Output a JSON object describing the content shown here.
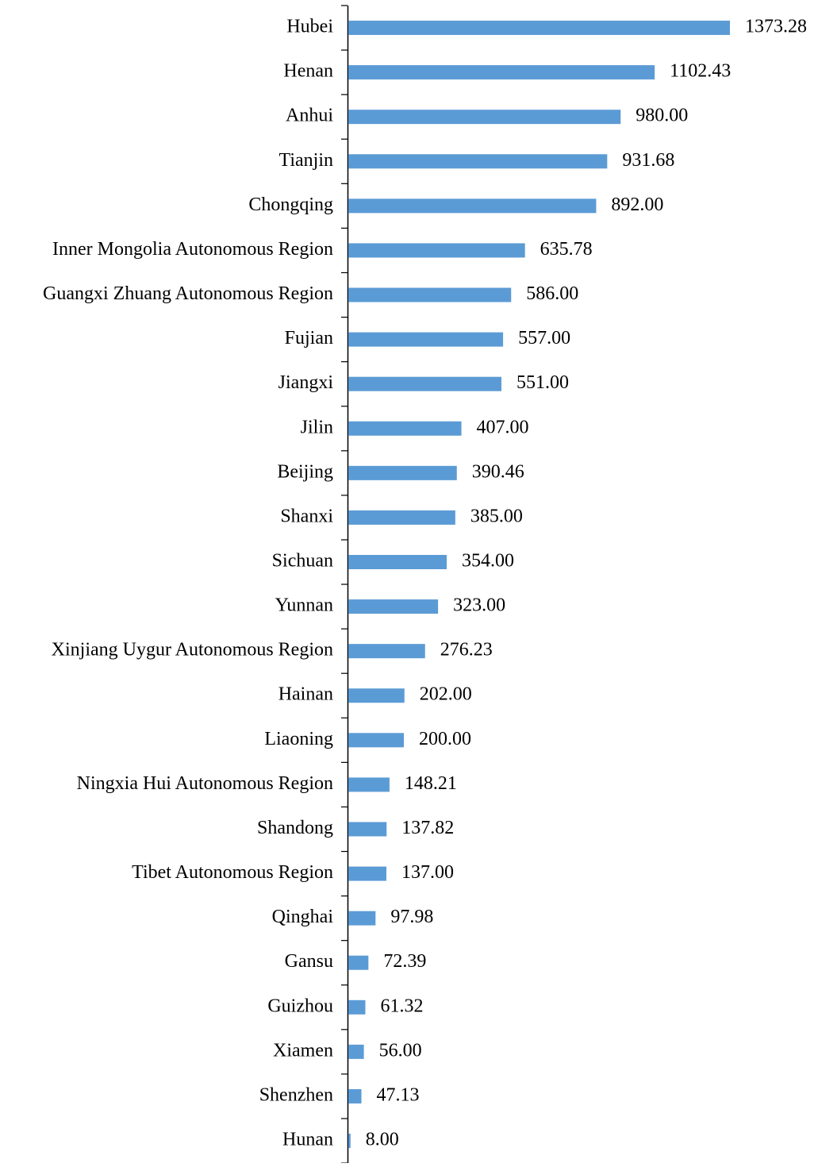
{
  "chart_data": {
    "type": "bar",
    "orientation": "horizontal",
    "color": "#5b9bd5",
    "categories": [
      "Hubei",
      "Henan",
      "Anhui",
      "Tianjin",
      "Chongqing",
      "Inner Mongolia Autonomous Region",
      "Guangxi Zhuang Autonomous Region",
      "Fujian",
      "Jiangxi",
      "Jilin",
      "Beijing",
      "Shanxi",
      "Sichuan",
      "Yunnan",
      "Xinjiang Uygur Autonomous Region",
      "Hainan",
      "Liaoning",
      "Ningxia Hui Autonomous Region",
      "Shandong",
      "Tibet Autonomous Region",
      "Qinghai",
      "Gansu",
      "Guizhou",
      "Xiamen",
      "Shenzhen",
      "Hunan"
    ],
    "values": [
      1373.28,
      1102.43,
      980,
      931.68,
      892,
      635.78,
      586,
      557,
      551,
      407,
      390.46,
      385,
      354,
      323,
      276.23,
      202,
      200,
      148.21,
      137.82,
      137,
      97.98,
      72.39,
      61.32,
      56,
      47.13,
      8
    ],
    "value_labels": [
      "1373.28",
      "1102.43",
      "980.00",
      "931.68",
      "892.00",
      "635.78",
      "586.00",
      "557.00",
      "551.00",
      "407.00",
      "390.46",
      "385.00",
      "354.00",
      "323.00",
      "276.23",
      "202.00",
      "200.00",
      "148.21",
      "137.82",
      "137.00",
      "97.98",
      "72.39",
      "61.32",
      "56.00",
      "47.13",
      "8.00"
    ]
  }
}
